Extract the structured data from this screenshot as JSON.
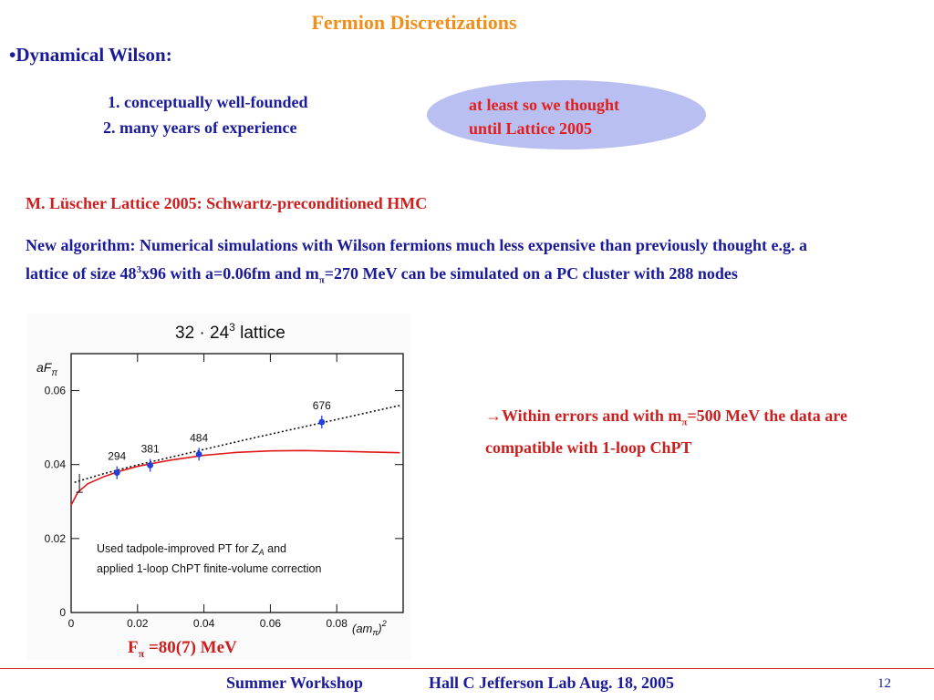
{
  "slide": {
    "title": "Fermion Discretizations",
    "bullet": "•Dynamical Wilson:",
    "items": [
      "1.  conceptually well-founded",
      "2.  many years of experience"
    ],
    "bubble_lines": [
      "at least so we thought",
      "until Lattice 2005"
    ],
    "luscher": "M. Lüscher Lattice 2005: Schwartz-preconditioned HMC",
    "para_a": "New algorithm: Numerical simulations with Wilson fermions much less expensive than previously thought e.g. a lattice of size 48",
    "para_sup": "3",
    "para_b": "x96 with a=0.06fm and m",
    "para_sub": "π",
    "para_c": "=270 MeV can be simulated on a PC cluster with 288 nodes",
    "note_arrow": "→",
    "note_a": "Within errors and with m",
    "note_sub": "π",
    "note_b": "=500 MeV the data are compatible with 1-loop ChPT",
    "fpi_a": "F",
    "fpi_sub": "π",
    "fpi_b": " =80(7) MeV",
    "footer_left": "Summer Workshop",
    "footer_right": "Hall C Jefferson Lab Aug. 18, 2005",
    "page_number": "12"
  },
  "chart_data": {
    "type": "scatter",
    "title": "32 · 24",
    "title_sup": "3",
    "title_suffix": " lattice",
    "ylabel": "aF",
    "ylabel_sub": "π",
    "xlabel": "(am",
    "xlabel_sub": "π",
    "xlabel_suffix": ")",
    "xlabel_sup": "2",
    "xlim": [
      0,
      0.1
    ],
    "ylim": [
      0,
      0.07
    ],
    "x_ticks": [
      "0",
      "0.02",
      "0.04",
      "0.06",
      "0.08"
    ],
    "x_tick_values": [
      0,
      0.02,
      0.04,
      0.06,
      0.08
    ],
    "y_ticks": [
      "0",
      "0.02",
      "0.04",
      "0.06"
    ],
    "y_tick_values": [
      0,
      0.02,
      0.04,
      0.06
    ],
    "points": [
      {
        "x": 0.0138,
        "y": 0.0378,
        "label": "294"
      },
      {
        "x": 0.0238,
        "y": 0.0398,
        "label": "381"
      },
      {
        "x": 0.0385,
        "y": 0.0428,
        "label": "484"
      },
      {
        "x": 0.0755,
        "y": 0.0515,
        "label": "676"
      }
    ],
    "fit_dotted": [
      [
        0.001,
        0.0352
      ],
      [
        0.01,
        0.0376
      ],
      [
        0.02,
        0.0399
      ],
      [
        0.03,
        0.042
      ],
      [
        0.04,
        0.0441
      ],
      [
        0.05,
        0.0462
      ],
      [
        0.06,
        0.0482
      ],
      [
        0.07,
        0.0502
      ],
      [
        0.08,
        0.0522
      ],
      [
        0.09,
        0.0542
      ],
      [
        0.099,
        0.056
      ]
    ],
    "chpt_curve": [
      [
        0,
        0.029
      ],
      [
        0.002,
        0.0325
      ],
      [
        0.005,
        0.0348
      ],
      [
        0.01,
        0.0368
      ],
      [
        0.015,
        0.0383
      ],
      [
        0.02,
        0.0395
      ],
      [
        0.025,
        0.0404
      ],
      [
        0.03,
        0.0412
      ],
      [
        0.04,
        0.0425
      ],
      [
        0.05,
        0.0433
      ],
      [
        0.06,
        0.0437
      ],
      [
        0.07,
        0.0438
      ],
      [
        0.08,
        0.0436
      ],
      [
        0.09,
        0.0434
      ],
      [
        0.099,
        0.0432
      ]
    ],
    "annotation_lines": [
      "Used tadpole-improved PT for ",
      "applied 1-loop ChPT finite-volume correction"
    ],
    "annotation_symbol": "Z",
    "annotation_symbol_sub": "A",
    "annotation_tail": " and",
    "colors": {
      "points": "#1f3fe0",
      "chpt": "#e01818",
      "dotted": "#111111"
    }
  }
}
